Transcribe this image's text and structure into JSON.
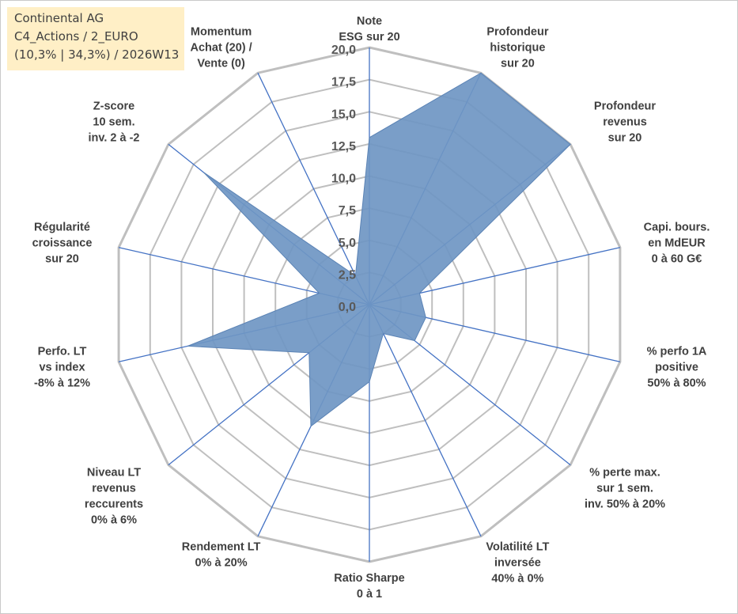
{
  "info": {
    "line1": "Continental AG",
    "line2": "C4_Actions / 2_EURO",
    "line3": "(10,3% | 34,3%) / 2026W13"
  },
  "chart_data": {
    "type": "radar",
    "rmax": 20,
    "tick_step": 2.5,
    "ticks": [
      "0,0",
      "2,5",
      "5,0",
      "7,5",
      "10,0",
      "12,5",
      "15,0",
      "17,5",
      "20,0"
    ],
    "grid": true,
    "colors": {
      "fill": "#6f96c3",
      "grid": "#bfbfbf",
      "spoke": "#4472c4"
    },
    "axes": [
      {
        "lines": [
          "Note",
          "ESG sur 20"
        ],
        "value": 13.0
      },
      {
        "lines": [
          "Profondeur",
          "historique",
          "sur 20"
        ],
        "value": 20.0
      },
      {
        "lines": [
          "Profondeur",
          "revenus",
          "sur 20"
        ],
        "value": 20.0
      },
      {
        "lines": [
          "Capi. bours.",
          "en MdEUR",
          "0 à 60 G€"
        ],
        "value": 4.0
      },
      {
        "lines": [
          "% perfo 1A",
          "positive",
          "50% à 80%"
        ],
        "value": 4.5
      },
      {
        "lines": [
          "% perte max.",
          "sur 1 sem.",
          "inv. 50% à 20%"
        ],
        "value": 4.5
      },
      {
        "lines": [
          "Volatilité LT",
          "inversée",
          "40% à 0%"
        ],
        "value": 2.5
      },
      {
        "lines": [
          "Ratio Sharpe",
          "0 à 1"
        ],
        "value": 6.0
      },
      {
        "lines": [
          "Rendement LT",
          "0% à 20%"
        ],
        "value": 10.5
      },
      {
        "lines": [
          "Niveau LT",
          "revenus",
          "reccurents",
          "0% à 6%"
        ],
        "value": 6.0
      },
      {
        "lines": [
          "Perfo. LT",
          "vs index",
          "-8% à 12%"
        ],
        "value": 14.5
      },
      {
        "lines": [
          "Régularité",
          "croissance",
          "sur 20"
        ],
        "value": 4.0
      },
      {
        "lines": [
          "Z-score",
          "10 sem.",
          "inv. 2 à -2"
        ],
        "value": 16.5
      },
      {
        "lines": [
          "Momentum",
          "Achat (20) /",
          "Vente (0)"
        ],
        "value": 2.5
      }
    ]
  }
}
